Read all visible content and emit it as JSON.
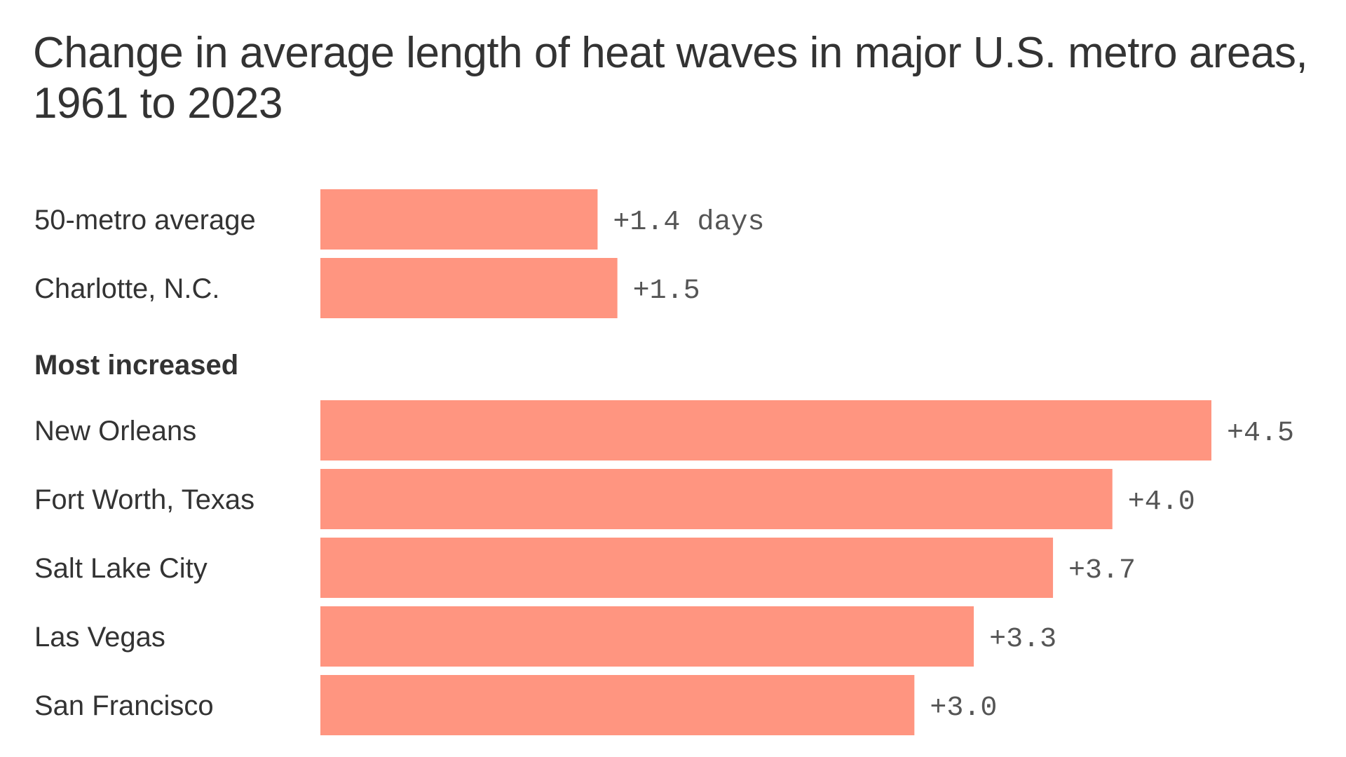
{
  "chart_data": {
    "type": "bar",
    "orientation": "horizontal",
    "title": "Change in average length of heat waves in major U.S. metro areas, 1961 to 2023",
    "bar_color": "#FF9580",
    "groups": [
      {
        "label": "",
        "items": [
          {
            "category": "50-metro average",
            "value": 1.4,
            "label": "+1.4 days"
          },
          {
            "category": "Charlotte, N.C.",
            "value": 1.5,
            "label": "+1.5"
          }
        ]
      },
      {
        "label": "Most increased",
        "items": [
          {
            "category": "New Orleans",
            "value": 4.5,
            "label": "+4.5"
          },
          {
            "category": "Fort Worth, Texas",
            "value": 4.0,
            "label": "+4.0"
          },
          {
            "category": "Salt Lake City",
            "value": 3.7,
            "label": "+3.7"
          },
          {
            "category": "Las Vegas",
            "value": 3.3,
            "label": "+3.3"
          },
          {
            "category": "San Francisco",
            "value": 3.0,
            "label": "+3.0"
          }
        ]
      }
    ],
    "xlim": [
      0,
      4.5
    ],
    "grid": false
  }
}
